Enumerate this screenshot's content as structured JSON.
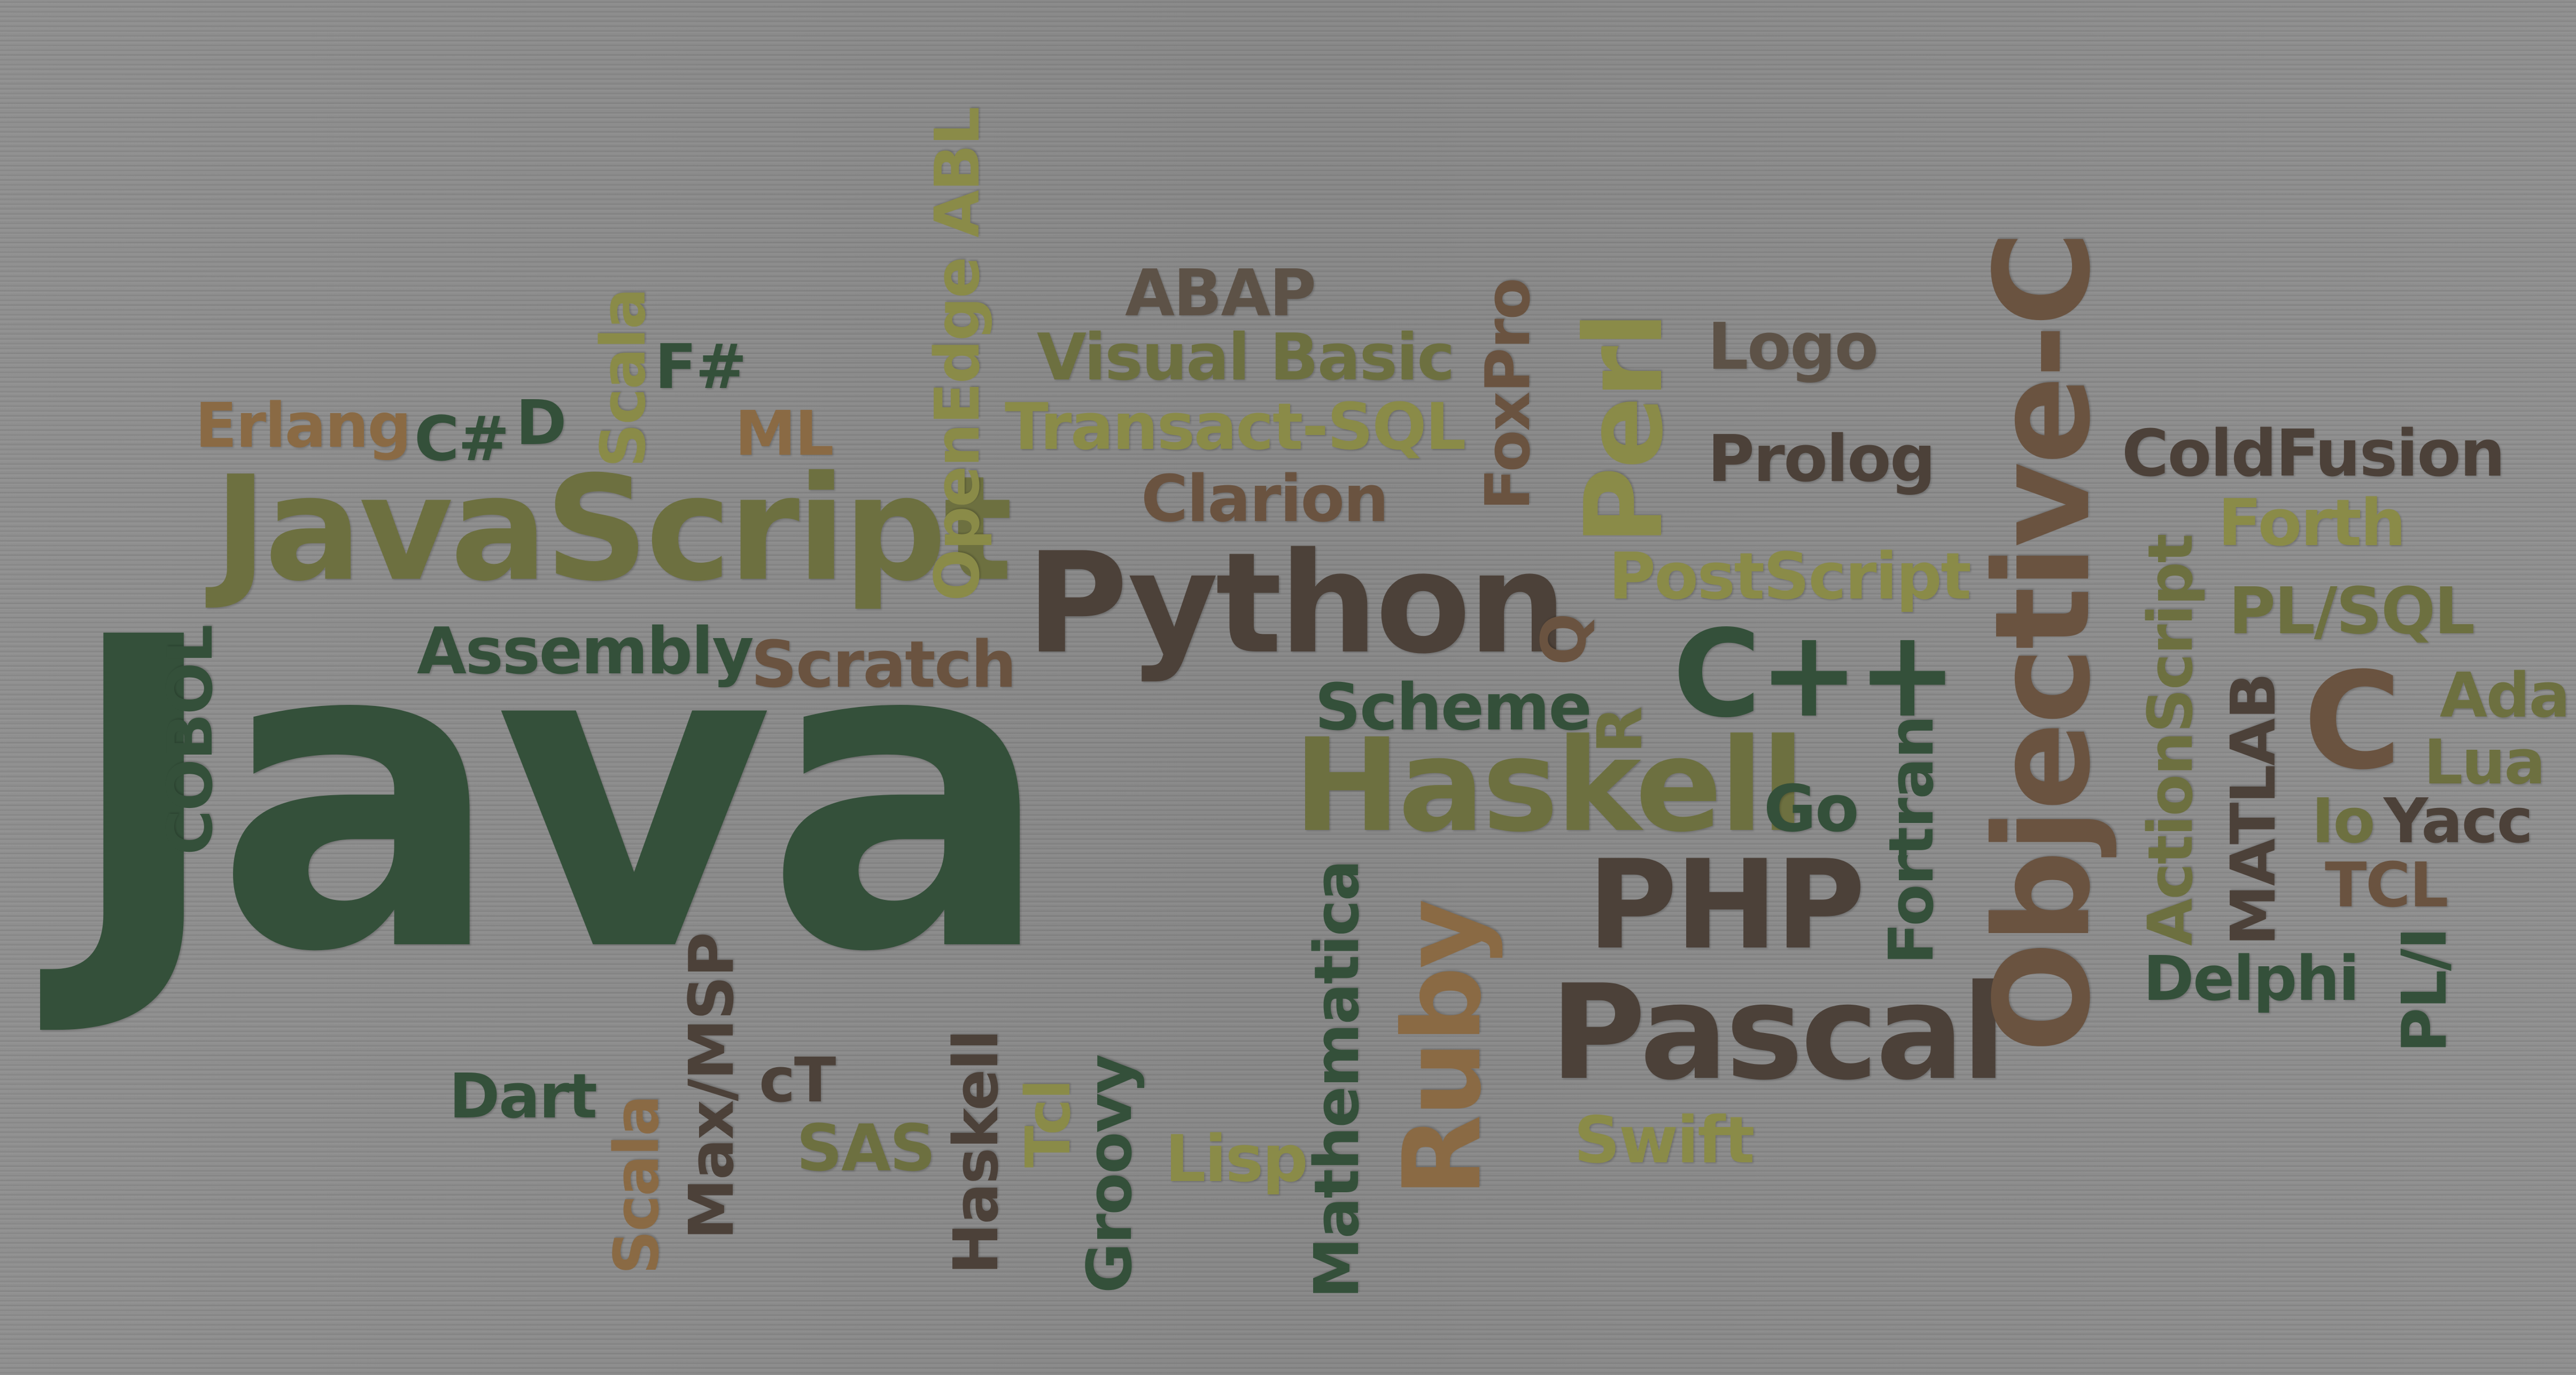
{
  "words": {
    "java": "Java",
    "javascript": "JavaScript",
    "python": "Python",
    "haskell": "Haskell",
    "objective_c": "Objective-C",
    "pascal": "Pascal",
    "cpp": "C++",
    "php": "PHP",
    "c": "C",
    "perl": "Perl",
    "ruby": "Ruby",
    "erlang": "Erlang",
    "csharp": "C#",
    "d": "D",
    "scala_top": "Scala",
    "fsharp": "F#",
    "ml": "ML",
    "openedge_abl": "OpenEdge ABL",
    "abap": "ABAP",
    "visual_basic": "Visual Basic",
    "transact_sql": "Transact-SQL",
    "clarion": "Clarion",
    "foxpro": "FoxPro",
    "logo": "Logo",
    "prolog": "Prolog",
    "coldfusion": "ColdFusion",
    "forth": "Forth",
    "plsql": "PL/SQL",
    "actionscript": "ActionScript",
    "postscript": "PostScript",
    "q": "Q",
    "assembly": "Assembly",
    "scratch": "Scratch",
    "cobol": "COBOL",
    "scheme": "Scheme",
    "r": "R",
    "go": "Go",
    "fortran": "Fortran",
    "matlab": "MATLAB",
    "ada": "Ada",
    "lua": "Lua",
    "io": "Io",
    "yacc": "Yacc",
    "tcl_upper": "TCL",
    "delphi": "Delphi",
    "pli": "PL/I",
    "dart": "Dart",
    "max_msp": "Max/MSP",
    "ct": "cT",
    "sas": "SAS",
    "scala_bottom": "Scala",
    "haskell_small": "Haskell",
    "tcl": "Tcl",
    "groovy": "Groovy",
    "lisp": "Lisp",
    "mathematica": "Mathematica",
    "swift": "Swift"
  }
}
